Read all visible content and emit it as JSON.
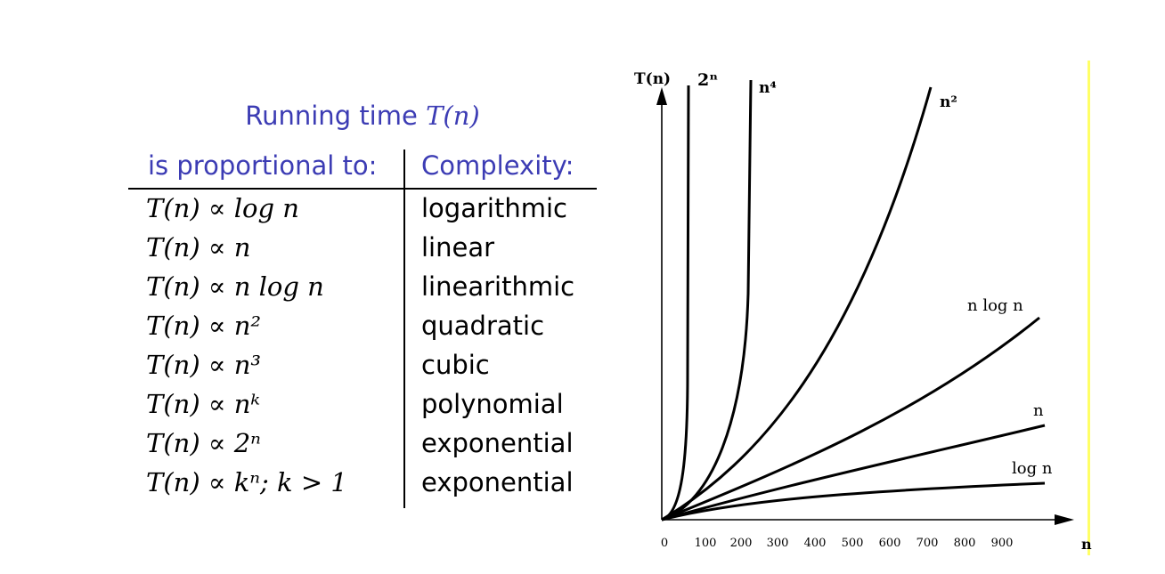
{
  "table": {
    "title_text": "Running time ",
    "title_math": "T(n)",
    "header_left": "is proportional to:",
    "header_right": "Complexity:",
    "rows": [
      {
        "expr": "T(n) ∝ log n",
        "complexity": "logarithmic"
      },
      {
        "expr": "T(n) ∝ n",
        "complexity": "linear"
      },
      {
        "expr": "T(n) ∝ n log n",
        "complexity": "linearithmic"
      },
      {
        "expr": "T(n) ∝ n²",
        "complexity": "quadratic"
      },
      {
        "expr": "T(n) ∝ n³",
        "complexity": "cubic"
      },
      {
        "expr": "T(n) ∝ nᵏ",
        "complexity": "polynomial"
      },
      {
        "expr": "T(n) ∝ 2ⁿ",
        "complexity": "exponential"
      },
      {
        "expr": "T(n) ∝ kⁿ; k > 1",
        "complexity": "exponential"
      }
    ]
  },
  "graph": {
    "y_axis_label": "T(n)",
    "x_axis_label": "n",
    "x_ticks": [
      "0",
      "100",
      "200",
      "300",
      "400",
      "500",
      "600",
      "700",
      "800",
      "900"
    ],
    "curve_labels": {
      "exp": "2ⁿ",
      "quartic": "n⁴",
      "quadratic": "n²",
      "nlogn": "n log n",
      "linear": "n",
      "log": "log n"
    },
    "highlight_color": "#ffff66"
  }
}
